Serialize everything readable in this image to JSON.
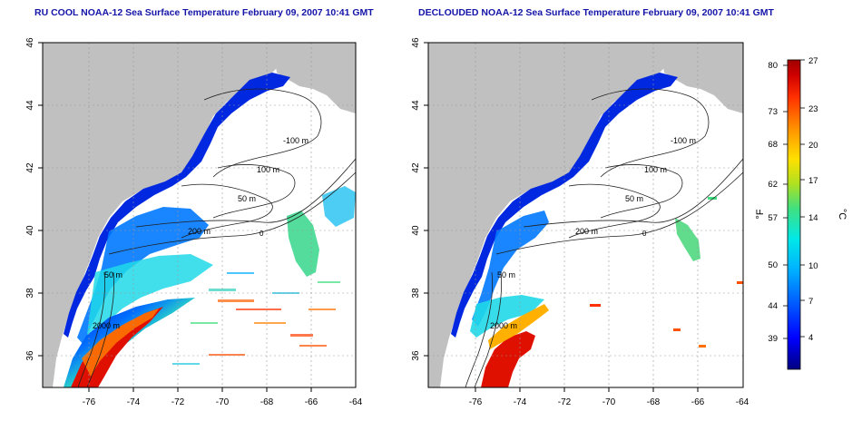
{
  "panels": [
    {
      "title": "RU COOL NOAA-12 Sea Surface Temperature February 09, 2007 10:41 GMT",
      "type": "raw",
      "isobath_labels": [
        "-100 m",
        "100 m",
        "50 m",
        "200 m",
        "0",
        "50 m",
        "2000 m"
      ]
    },
    {
      "title": "DECLOUDED NOAA-12 Sea Surface Temperature February 09, 2007 10:41 GMT",
      "type": "declouded",
      "isobath_labels": [
        "-100 m",
        "100 m",
        "50 m",
        "200 m",
        "0",
        "50 m",
        "2000 m"
      ]
    }
  ],
  "axes": {
    "lat_ticks": [
      "46",
      "44",
      "42",
      "40",
      "38",
      "36"
    ],
    "lon_ticks": [
      "-76",
      "-74",
      "-72",
      "-70",
      "-68",
      "-66",
      "-64"
    ]
  },
  "colorbar": {
    "f_label": "°F",
    "c_label": "°C",
    "f_ticks": [
      "80",
      "73",
      "68",
      "62",
      "57",
      "50",
      "44",
      "39"
    ],
    "c_ticks": [
      "27",
      "23",
      "20",
      "17",
      "14",
      "10",
      "7",
      "4"
    ]
  },
  "colors": {
    "land": "#c0c0c0",
    "title": "#1414a8",
    "scale": [
      "#000080",
      "#0000ff",
      "#0060ff",
      "#00b0ff",
      "#00e8e8",
      "#40e080",
      "#b0e020",
      "#ffe000",
      "#ff9000",
      "#ff3000",
      "#d00000",
      "#a00000"
    ]
  }
}
